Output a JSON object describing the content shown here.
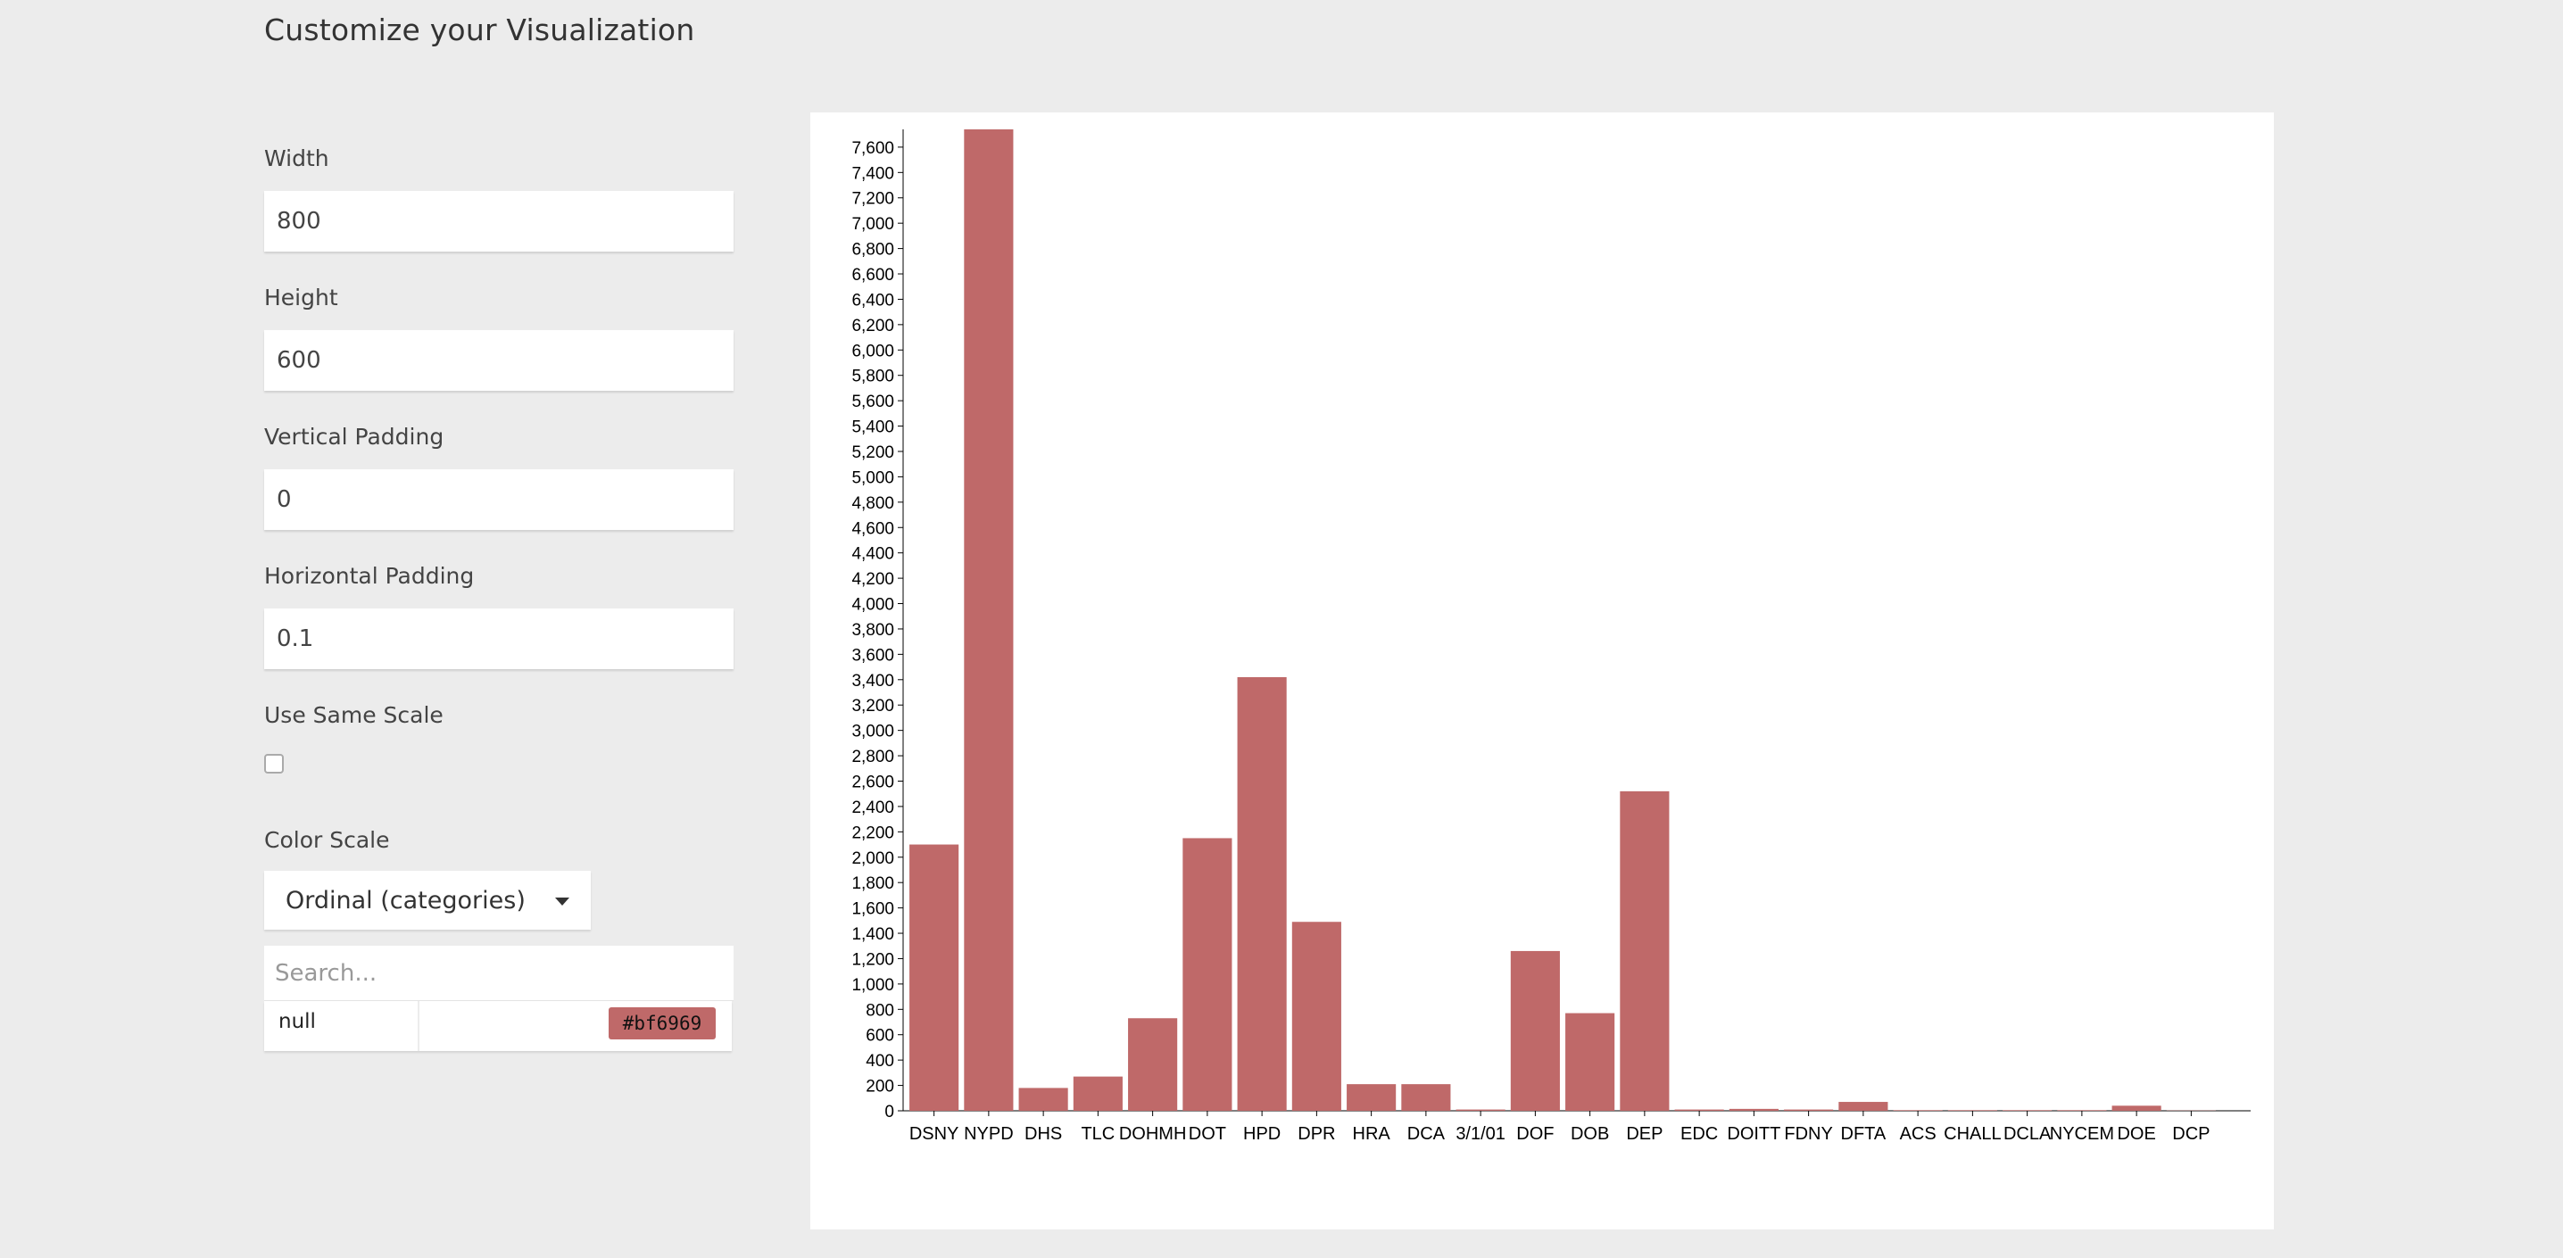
{
  "page": {
    "title": "Customize your Visualization"
  },
  "form": {
    "width_label": "Width",
    "width_value": "800",
    "height_label": "Height",
    "height_value": "600",
    "vpad_label": "Vertical Padding",
    "vpad_value": "0",
    "hpad_label": "Horizontal Padding",
    "hpad_value": "0.1",
    "same_scale_label": "Use Same Scale",
    "same_scale_checked": false,
    "color_scale_label": "Color Scale",
    "color_scale_value": "Ordinal (categories)",
    "search_placeholder": "Search...",
    "color_entries": [
      {
        "name": "null",
        "color": "#bf6969"
      }
    ]
  },
  "chart_data": {
    "type": "bar",
    "categories": [
      "DSNY",
      "NYPD",
      "DHS",
      "TLC",
      "DOHMH",
      "DOT",
      "HPD",
      "DPR",
      "HRA",
      "DCA",
      "3/1/01",
      "DOF",
      "DOB",
      "DEP",
      "EDC",
      "DOITT",
      "FDNY",
      "DFTA",
      "ACS",
      "CHALL",
      "DCLA",
      "NYCEM",
      "DOE",
      "DCP"
    ],
    "values": [
      2100,
      7740,
      180,
      270,
      730,
      2150,
      3420,
      1490,
      210,
      210,
      10,
      1260,
      770,
      2520,
      10,
      15,
      10,
      70,
      5,
      5,
      5,
      5,
      40,
      2
    ],
    "ylim": [
      0,
      7740
    ],
    "yticks": [
      0,
      200,
      400,
      600,
      800,
      1000,
      1200,
      1400,
      1600,
      1800,
      2000,
      2200,
      2400,
      2600,
      2800,
      3000,
      3200,
      3400,
      3600,
      3800,
      4000,
      4200,
      4400,
      4600,
      4800,
      5000,
      5200,
      5400,
      5600,
      5800,
      6000,
      6200,
      6400,
      6600,
      6800,
      7000,
      7200,
      7400,
      7600
    ],
    "ytick_labels": [
      "0",
      "200",
      "400",
      "600",
      "800",
      "1,000",
      "1,200",
      "1,400",
      "1,600",
      "1,800",
      "2,000",
      "2,200",
      "2,400",
      "2,600",
      "2,800",
      "3,000",
      "3,200",
      "3,400",
      "3,600",
      "3,800",
      "4,000",
      "4,200",
      "4,400",
      "4,600",
      "4,800",
      "5,000",
      "5,200",
      "5,400",
      "5,600",
      "5,800",
      "6,000",
      "6,200",
      "6,400",
      "6,600",
      "6,800",
      "7,000",
      "7,200",
      "7,400",
      "7,600"
    ],
    "bar_color": "#bf6969",
    "title": "",
    "xlabel": "",
    "ylabel": "",
    "grid": false
  }
}
